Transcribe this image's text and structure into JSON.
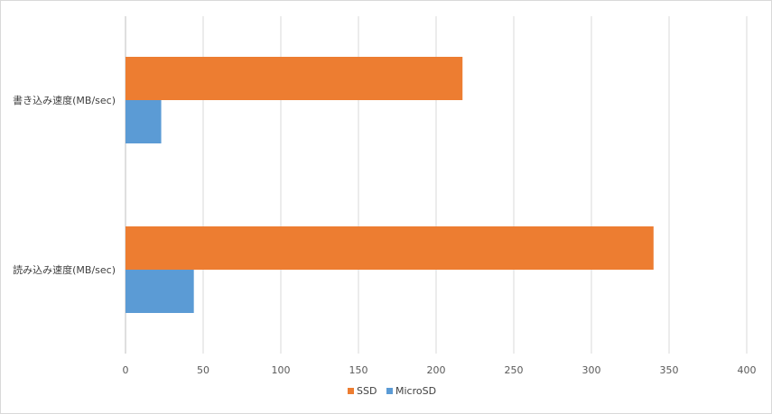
{
  "chart_data": {
    "type": "bar",
    "orientation": "horizontal",
    "categories": [
      "書き込み速度(MB/sec)",
      "読み込み速度(MB/sec)"
    ],
    "series": [
      {
        "name": "SSD",
        "values": [
          217,
          340
        ],
        "color": "#ED7D31"
      },
      {
        "name": "MicroSD",
        "values": [
          23,
          44
        ],
        "color": "#5B9BD5"
      }
    ],
    "xlim": [
      0,
      400
    ],
    "xticks": [
      0,
      50,
      100,
      150,
      200,
      250,
      300,
      350,
      400
    ],
    "grid": true,
    "legend": "bottom-center"
  }
}
